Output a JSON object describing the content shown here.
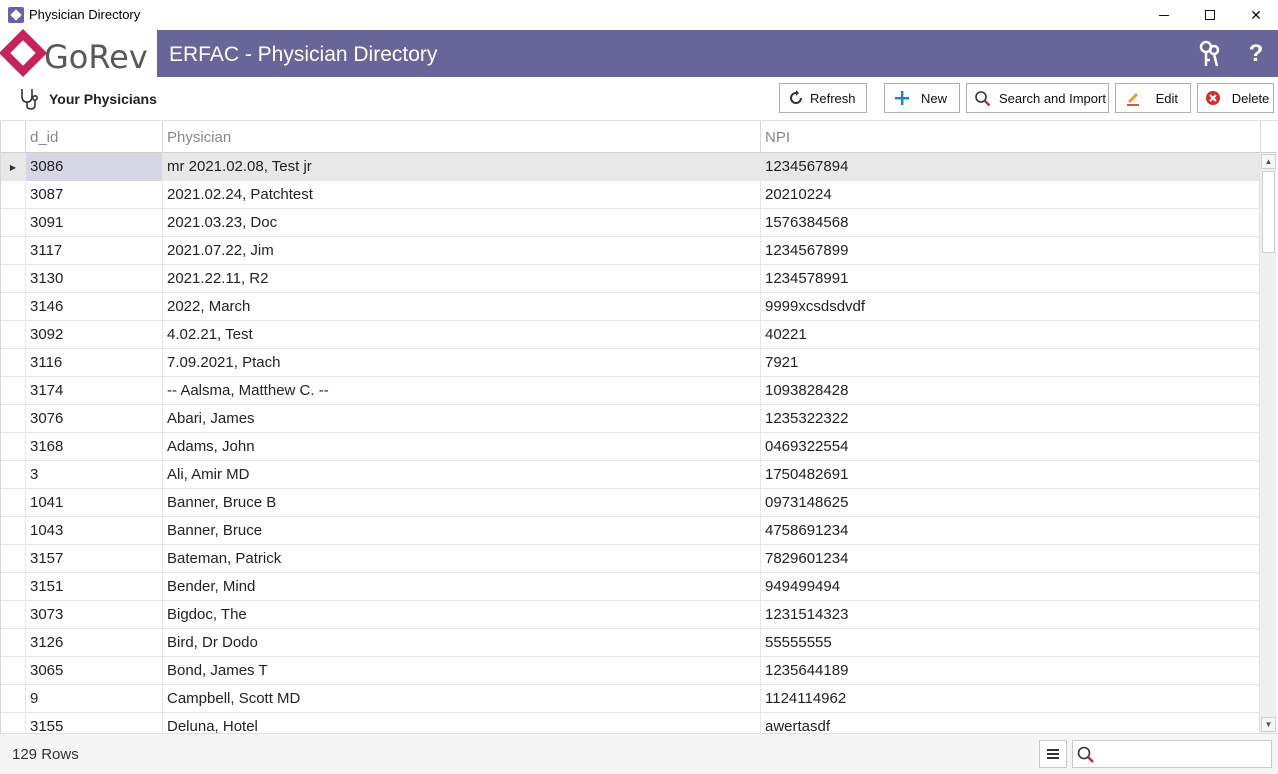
{
  "window": {
    "title": "Physician Directory",
    "controls": {
      "minimize": "",
      "maximize": "",
      "close": "✕"
    }
  },
  "banner": {
    "logo_text": "GoRev",
    "title": "ERFAC - Physician Directory",
    "help_icon_text": "?"
  },
  "toolbar": {
    "section_title": "Your Physicians",
    "buttons": {
      "refresh": "Refresh",
      "new": "New",
      "search_import": "Search and Import",
      "edit": "Edit",
      "delete": "Delete"
    }
  },
  "grid": {
    "columns": {
      "id": "d_id",
      "physician": "Physician",
      "npi": "NPI"
    },
    "rows": [
      {
        "id": "3086",
        "physician": "mr 2021.02.08, Test jr",
        "npi": "1234567894"
      },
      {
        "id": "3087",
        "physician": "2021.02.24, Patchtest",
        "npi": "20210224"
      },
      {
        "id": "3091",
        "physician": "2021.03.23, Doc",
        "npi": "1576384568"
      },
      {
        "id": "3117",
        "physician": "2021.07.22, Jim",
        "npi": "1234567899"
      },
      {
        "id": "3130",
        "physician": "2021.22.11, R2",
        "npi": "1234578991"
      },
      {
        "id": "3146",
        "physician": "2022, March",
        "npi": "9999xcsdsdvdf"
      },
      {
        "id": "3092",
        "physician": "4.02.21, Test",
        "npi": "40221"
      },
      {
        "id": "3116",
        "physician": "7.09.2021, Ptach",
        "npi": "7921"
      },
      {
        "id": "3174",
        "physician": "-- Aalsma, Matthew C. --",
        "npi": "1093828428"
      },
      {
        "id": "3076",
        "physician": "Abari, James",
        "npi": "1235322322"
      },
      {
        "id": "3168",
        "physician": "Adams, John",
        "npi": "0469322554"
      },
      {
        "id": "3",
        "physician": "Ali, Amir MD",
        "npi": "1750482691"
      },
      {
        "id": "1041",
        "physician": "Banner, Bruce B",
        "npi": "0973148625"
      },
      {
        "id": "1043",
        "physician": "Banner, Bruce",
        "npi": "4758691234"
      },
      {
        "id": "3157",
        "physician": "Bateman, Patrick",
        "npi": "7829601234"
      },
      {
        "id": "3151",
        "physician": "Bender, Mind",
        "npi": "949499494"
      },
      {
        "id": "3073",
        "physician": "Bigdoc, The",
        "npi": "1231514323"
      },
      {
        "id": "3126",
        "physician": "Bird, Dr Dodo",
        "npi": "55555555"
      },
      {
        "id": "3065",
        "physician": "Bond, James T",
        "npi": "1235644189"
      },
      {
        "id": "9",
        "physician": "Campbell, Scott MD",
        "npi": "1124114962"
      },
      {
        "id": "3155",
        "physician": "Deluna, Hotel",
        "npi": "awertasdf"
      }
    ],
    "selected_index": 0
  },
  "status": {
    "row_count": "129 Rows",
    "search_value": ""
  },
  "colors": {
    "banner": "#686599",
    "logo_red": "#c5235a",
    "selected_row": "#e8e8e8"
  }
}
